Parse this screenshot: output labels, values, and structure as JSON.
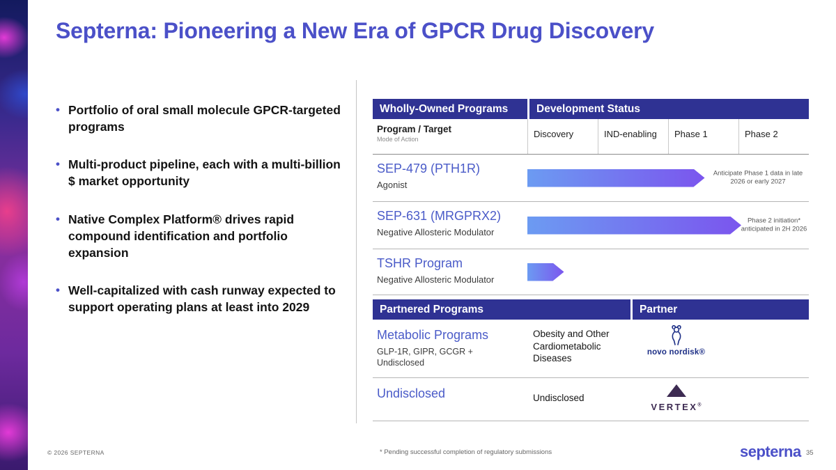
{
  "slide": {
    "title": "Septerna: Pioneering a New Era of GPCR Drug Discovery",
    "bullets": [
      "Portfolio of oral small molecule GPCR-targeted programs",
      "Multi-product pipeline, each with a multi-billion $ market opportunity",
      "Native Complex Platform® drives rapid compound identification and portfolio expansion",
      "Well-capitalized with cash runway expected to support operating plans at least into 2029"
    ]
  },
  "table": {
    "owned_header": "Wholly-Owned Programs",
    "status_header": "Development Status",
    "program_col": {
      "title": "Program / Target",
      "subtitle": "Mode of Action"
    },
    "phase_cols": [
      "Discovery",
      "IND-enabling",
      "Phase 1",
      "Phase 2"
    ],
    "programs": [
      {
        "name": "SEP-479 (PTH1R)",
        "moa": "Agonist",
        "arrow_pct": 63,
        "note": "Anticipate Phase 1 data in late 2026 or early 2027"
      },
      {
        "name": "SEP-631 (MRGPRX2)",
        "moa": "Negative Allosteric Modulator",
        "arrow_pct": 76,
        "note": "Phase 2 initiation* anticipated in 2H 2026"
      },
      {
        "name": "TSHR Program",
        "moa": "Negative Allosteric Modulator",
        "arrow_pct": 13,
        "note": ""
      }
    ],
    "partnered_header": "Partnered Programs",
    "partner_header": "Partner",
    "partnered": [
      {
        "name": "Metabolic Programs",
        "moa": "GLP-1R, GIPR, GCGR + Undisclosed",
        "indication": "Obesity and Other Cardiometabolic Diseases",
        "partner": "novo nordisk",
        "partner_mark": "novo nordisk®"
      },
      {
        "name": "Undisclosed",
        "moa": "",
        "indication": "Undisclosed",
        "partner": "VERTEX",
        "partner_mark": "VERTEX"
      }
    ]
  },
  "footer": {
    "copyright": "© 2026 SEPTERNA",
    "footnote": "* Pending successful completion of regulatory submissions",
    "logo": "septerna",
    "page": "35"
  },
  "colors": {
    "accent": "#4b50c8",
    "header_band": "#2f3293",
    "arrow_start": "#6c9bf2",
    "arrow_end": "#7b55ee",
    "novo_blue": "#1d2f86",
    "vertex_purple": "#3d2b52"
  }
}
